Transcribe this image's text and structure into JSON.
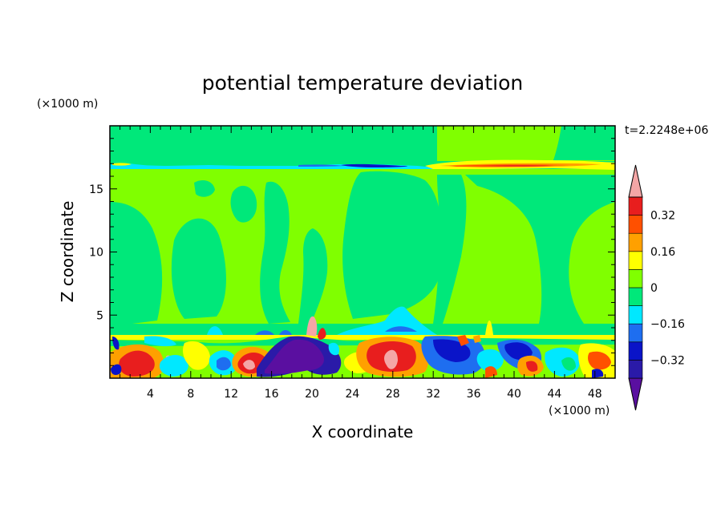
{
  "chart_data": {
    "type": "heatmap",
    "title": "potential temperature deviation",
    "xlabel": "X coordinate",
    "ylabel": "Z coordinate",
    "x_unit": "(×1000 m)",
    "y_unit": "(×1000 m)",
    "time_label": "t=2.2248e+06",
    "xlim": [
      0,
      50
    ],
    "ylim": [
      0,
      20
    ],
    "x_ticks": [
      4,
      8,
      12,
      16,
      20,
      24,
      28,
      32,
      36,
      40,
      44,
      48
    ],
    "y_ticks": [
      5,
      10,
      15
    ],
    "colorbar": {
      "levels": [
        -0.4,
        -0.32,
        -0.24,
        -0.16,
        -0.08,
        0,
        0.08,
        0.16,
        0.24,
        0.32,
        0.4
      ],
      "labels": [
        {
          "value": 0.32,
          "text": "0.32"
        },
        {
          "value": 0.16,
          "text": "0.16"
        },
        {
          "value": 0,
          "text": "0"
        },
        {
          "value": -0.16,
          "text": "−0.16"
        },
        {
          "value": -0.32,
          "text": "−0.32"
        }
      ],
      "colors": [
        "#5a0fa0",
        "#2a1aa8",
        "#0a14c8",
        "#1e6ef0",
        "#00e8ff",
        "#00e87a",
        "#80ff00",
        "#ffff00",
        "#ffa000",
        "#ff5000",
        "#e81e1e",
        "#f4a6a6"
      ]
    },
    "field_description": "Mostly near-zero (green) above 4 km, with a sharp anomaly band near z≈16.8 km (negative around x≈12–24, positive around x≈34–48) and strong mixed anomalies below z≈3.5 km, including a negative core near x≈16–22 and positive cores near x≈3–6, 13–16 and 27–30."
  }
}
